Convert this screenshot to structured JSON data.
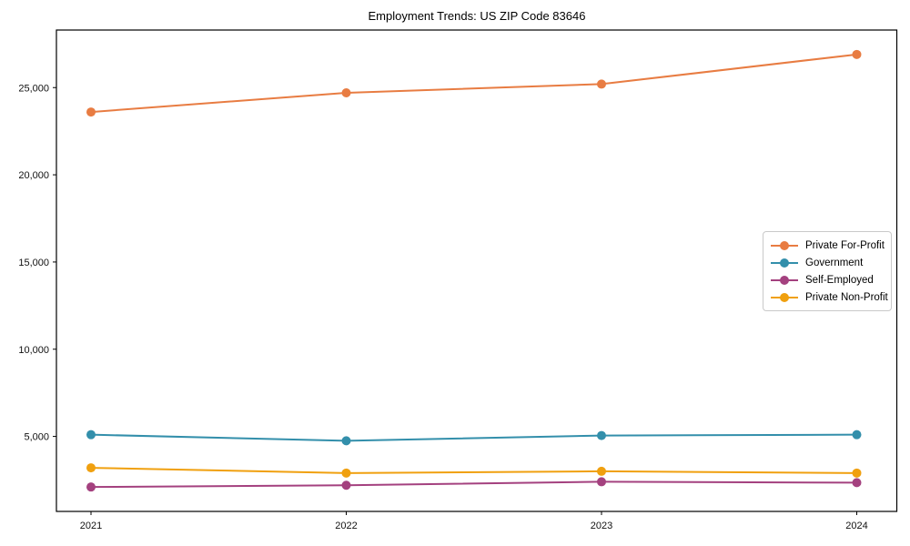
{
  "chart_data": {
    "type": "line",
    "title": "Employment Trends: US ZIP Code 83646",
    "xlabel": "",
    "ylabel": "",
    "x_labels": [
      "2021",
      "2022",
      "2023",
      "2024"
    ],
    "series": [
      {
        "name": "Private For-Profit",
        "color": "#e87c42",
        "values": [
          23600,
          24700,
          25200,
          26900
        ]
      },
      {
        "name": "Government",
        "color": "#338fab",
        "values": [
          5100,
          4750,
          5050,
          5100
        ]
      },
      {
        "name": "Self-Employed",
        "color": "#a4417f",
        "values": [
          2100,
          2200,
          2400,
          2350
        ]
      },
      {
        "name": "Private Non-Profit",
        "color": "#f0a00f",
        "values": [
          3200,
          2900,
          3000,
          2900
        ]
      }
    ],
    "yticks": {
      "values": [
        5000,
        10000,
        15000,
        20000,
        25000
      ],
      "labels": [
        "5,000",
        "10,000",
        "15,000",
        "20,000",
        "25,000"
      ]
    },
    "ylim": [
      700,
      28300
    ],
    "grid": false,
    "legend_position": "right-inside",
    "marker": "circle",
    "axis_color": "#000000",
    "background": "#ffffff"
  }
}
